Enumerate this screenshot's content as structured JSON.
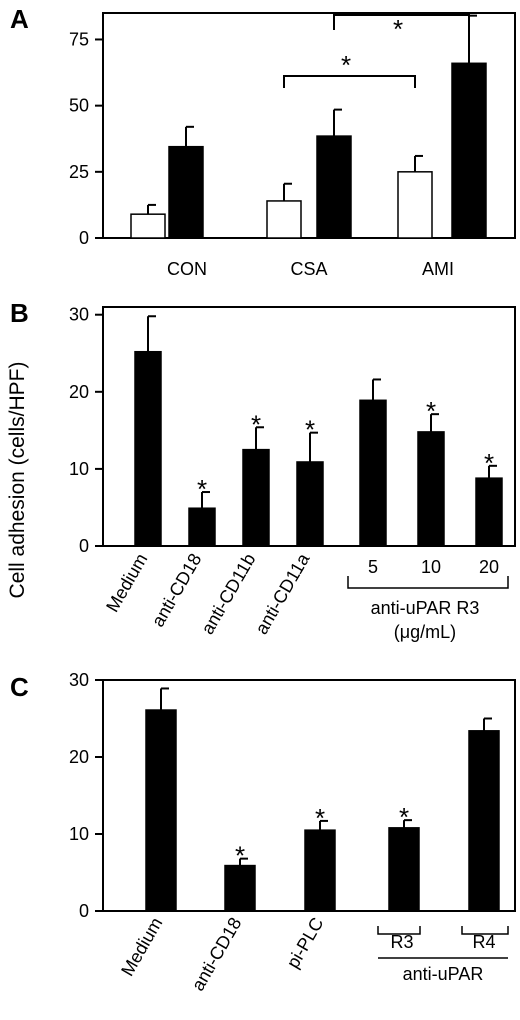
{
  "ylabel": "Cell adhesion (cells/HPF)",
  "chart_data": [
    {
      "type": "bar",
      "panel_label": "A",
      "categories": [
        "CON",
        "CSA",
        "AMI"
      ],
      "ylim": [
        0,
        85
      ],
      "yticks": [
        "0",
        "25",
        "50",
        "75"
      ],
      "series": [
        {
          "fill": "#ffffff",
          "values": [
            9,
            14,
            25
          ],
          "errors": [
            3.5,
            6.5,
            6
          ]
        },
        {
          "fill": "#000000",
          "values": [
            34.5,
            38.5,
            66
          ],
          "errors": [
            7.5,
            10,
            18
          ]
        }
      ],
      "significance": [
        {
          "from": "CSA",
          "to": "AMI",
          "label": "*"
        },
        {
          "from": "CSA",
          "to": "AMI",
          "label": "*"
        }
      ]
    },
    {
      "type": "bar",
      "panel_label": "B",
      "categories": [
        "Medium",
        "anti-CD18",
        "anti-CD11b",
        "anti-CD11a",
        "5",
        "10",
        "20"
      ],
      "ylim": [
        0,
        31
      ],
      "yticks": [
        "0",
        "10",
        "20",
        "30"
      ],
      "series": [
        {
          "fill": "#000000",
          "values": [
            25.2,
            4.9,
            12.5,
            10.9,
            18.9,
            14.8,
            8.8
          ],
          "errors": [
            4.6,
            2.1,
            2.9,
            3.8,
            2.7,
            2.3,
            1.6
          ]
        }
      ],
      "markers": [
        "",
        "*",
        "*",
        "*",
        "",
        "*",
        "*"
      ],
      "group_label": {
        "line1": "anti-uPAR R3",
        "line2": "(μg/mL)"
      }
    },
    {
      "type": "bar",
      "panel_label": "C",
      "categories": [
        "Medium",
        "anti-CD18",
        "pi-PLC",
        "R3",
        "R4"
      ],
      "ylim": [
        0,
        30
      ],
      "yticks": [
        "0",
        "10",
        "20",
        "30"
      ],
      "series": [
        {
          "fill": "#000000",
          "values": [
            26.1,
            5.9,
            10.5,
            10.8,
            23.4
          ],
          "errors": [
            2.8,
            0.9,
            1.2,
            1.0,
            1.6
          ]
        }
      ],
      "markers": [
        "",
        "*",
        "*",
        "*",
        ""
      ],
      "group_label": {
        "line1": "anti-uPAR"
      }
    }
  ]
}
